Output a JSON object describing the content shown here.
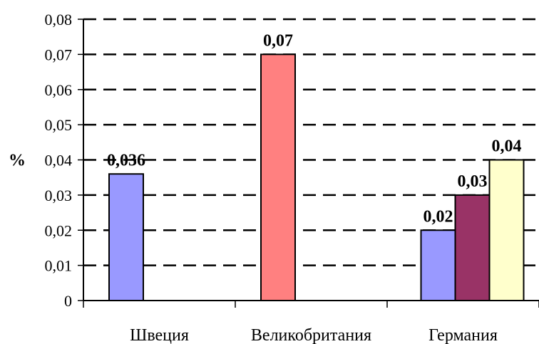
{
  "chart_data": {
    "type": "bar",
    "ylabel": "%",
    "ylim": [
      0,
      0.08
    ],
    "grid": true,
    "y_ticks": [
      "0",
      "0,01",
      "0,02",
      "0,03",
      "0,04",
      "0,05",
      "0,06",
      "0,07",
      "0,08"
    ],
    "categories": [
      "Швеция",
      "Великобритания",
      "Германия"
    ],
    "bars": [
      {
        "category": "Швеция",
        "value": 0.036,
        "label": "0,036",
        "color": "#9999ff"
      },
      {
        "category": "Великобритания",
        "value": 0.07,
        "label": "0,07",
        "color": "#ff8080"
      },
      {
        "category": "Германия",
        "value": 0.02,
        "label": "0,02",
        "color": "#9999ff"
      },
      {
        "category": "Германия",
        "value": 0.03,
        "label": "0,03",
        "color": "#993366"
      },
      {
        "category": "Германия",
        "value": 0.04,
        "label": "0,04",
        "color": "#ffffcc"
      }
    ]
  }
}
